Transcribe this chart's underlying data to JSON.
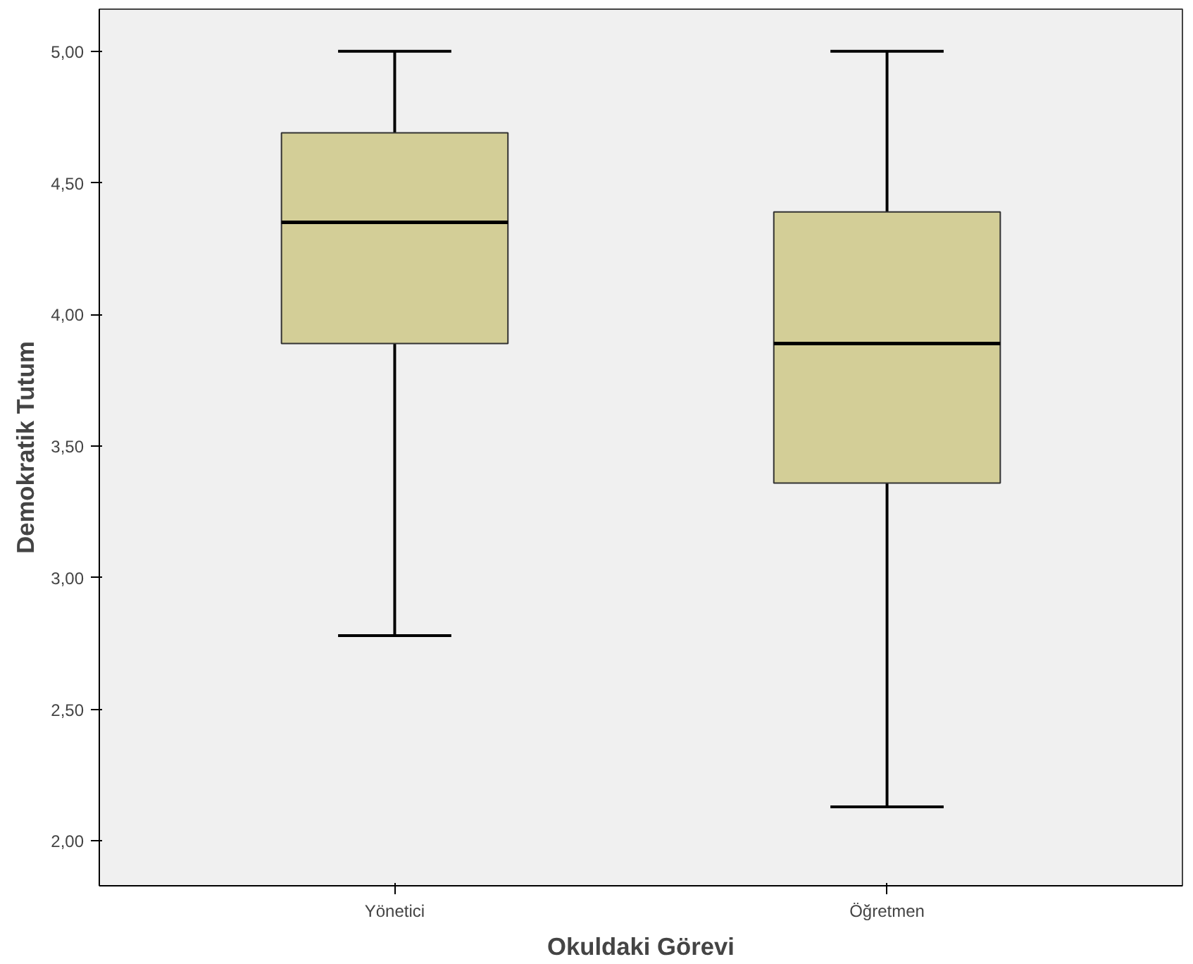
{
  "chart_data": {
    "type": "box",
    "xlabel": "Okuldaki Görevi",
    "ylabel": "Demokratik Tutum",
    "categories": [
      "Yönetici",
      "Öğretmen"
    ],
    "boxes": [
      {
        "low": 2.78,
        "q1": 3.89,
        "median": 4.35,
        "q3": 4.69,
        "high": 5.0
      },
      {
        "low": 2.13,
        "q1": 3.36,
        "median": 3.89,
        "q3": 4.39,
        "high": 5.0
      }
    ],
    "color": "#d3ce97",
    "ylim": [
      1.83,
      5.16
    ],
    "yticks": [
      {
        "value": 2.0,
        "label": "2,00"
      },
      {
        "value": 2.5,
        "label": "2,50"
      },
      {
        "value": 3.0,
        "label": "3,00"
      },
      {
        "value": 3.5,
        "label": "3,50"
      },
      {
        "value": 4.0,
        "label": "4,00"
      },
      {
        "value": 4.5,
        "label": "4,50"
      },
      {
        "value": 5.0,
        "label": "5,00"
      }
    ],
    "grid": false
  }
}
